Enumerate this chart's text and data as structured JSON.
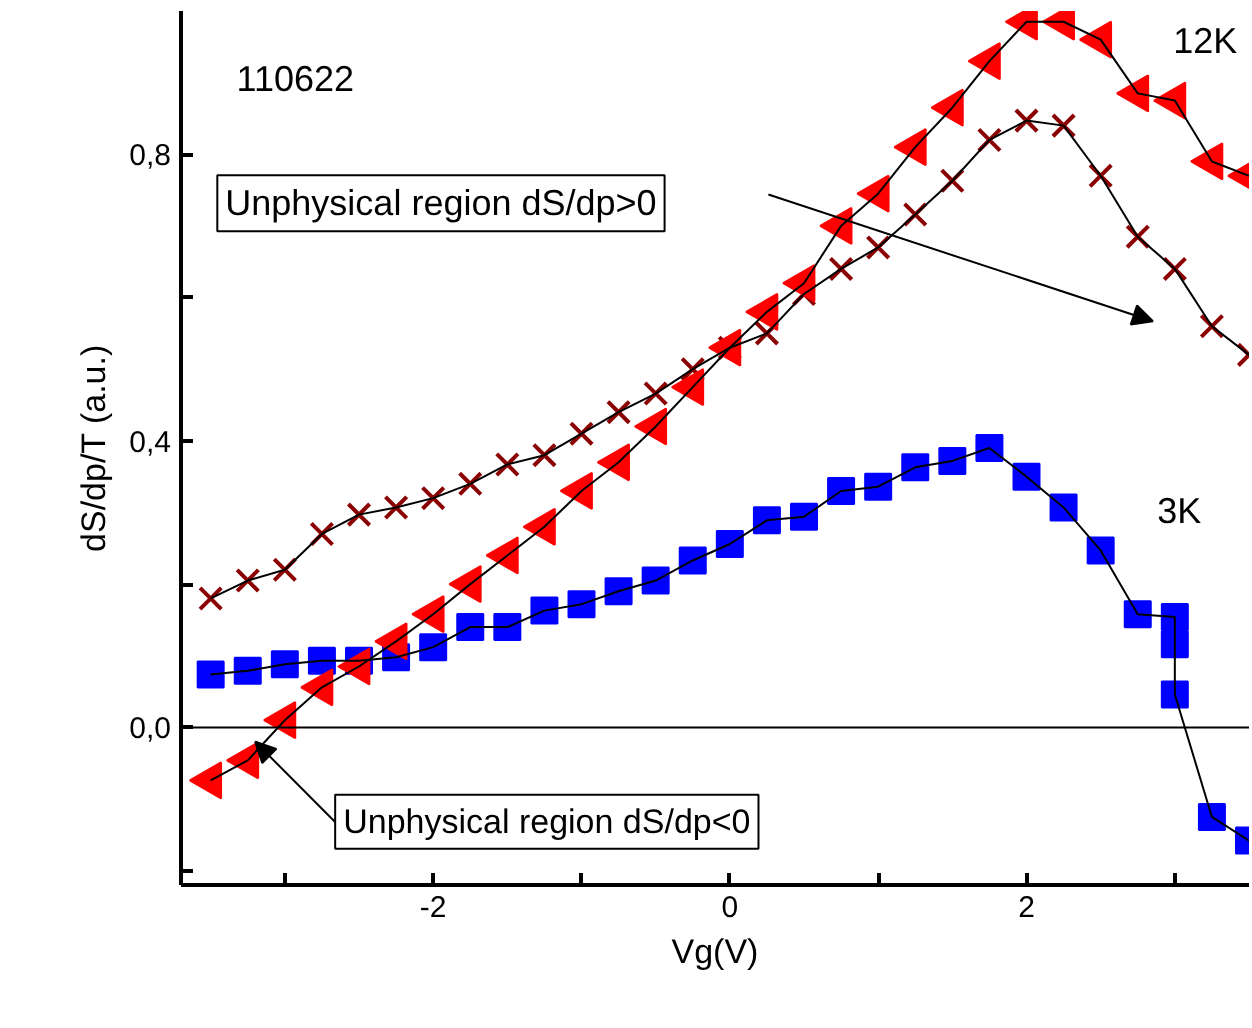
{
  "chart_data": {
    "type": "line",
    "xlabel": "Vg(V)",
    "ylabel": "dS/dp/T (a.u.)",
    "x": [
      -3.5,
      -3.25,
      -3.0,
      -2.75,
      -2.5,
      -2.25,
      -2.0,
      -1.75,
      -1.5,
      -1.25,
      -1.0,
      -0.75,
      -0.5,
      -0.25,
      0.0,
      0.25,
      0.5,
      0.75,
      1.0,
      1.25,
      1.5,
      1.75,
      2.0,
      2.25,
      2.5,
      2.75,
      3.0,
      3.25,
      3.5
    ],
    "series": [
      {
        "color": "#ff0000",
        "marker": "triangle",
        "values": [
          -0.074,
          -0.046,
          0.01,
          0.056,
          0.085,
          0.12,
          0.158,
          0.2,
          0.24,
          0.28,
          0.33,
          0.37,
          0.42,
          0.475,
          0.53,
          0.58,
          0.62,
          0.7,
          0.745,
          0.81,
          0.865,
          0.93,
          0.985,
          0.985,
          0.96,
          0.885,
          0.875,
          0.79,
          0.77
        ]
      },
      {
        "color": "#8b0000",
        "marker": "cross",
        "values": [
          0.18,
          0.205,
          0.22,
          0.27,
          0.297,
          0.307,
          0.32,
          0.34,
          0.367,
          0.38,
          0.41,
          0.44,
          0.466,
          0.5,
          0.53,
          0.55,
          0.605,
          0.64,
          0.67,
          0.716,
          0.763,
          0.82,
          0.847,
          0.84,
          0.77,
          0.685,
          0.64,
          0.56,
          0.52
        ]
      },
      {
        "color": "#0000ff",
        "marker": "square",
        "x": [
          -3.5,
          -3.25,
          -3.0,
          -2.75,
          -2.5,
          -2.25,
          -2.0,
          -1.75,
          -1.5,
          -1.25,
          -1.0,
          -0.75,
          -0.5,
          -0.25,
          0.0,
          0.25,
          0.5,
          0.75,
          1.0,
          1.25,
          1.5,
          1.75,
          2.0,
          2.25,
          2.5,
          2.75,
          3.0,
          3.0,
          3.0,
          3.25,
          3.5
        ],
        "values": [
          0.074,
          0.079,
          0.088,
          0.093,
          0.093,
          0.098,
          0.112,
          0.14,
          0.14,
          0.163,
          0.172,
          0.19,
          0.205,
          0.233,
          0.256,
          0.289,
          0.294,
          0.33,
          0.336,
          0.363,
          0.372,
          0.39,
          0.35,
          0.307,
          0.247,
          0.158,
          0.154,
          0.116,
          0.046,
          -0.125,
          -0.158
        ]
      }
    ],
    "xlim": [
      -3.7,
      3.5
    ],
    "ylim": [
      -0.22,
      1.0
    ],
    "xticks": [
      {
        "value": -3,
        "label": null
      },
      -2,
      {
        "value": -1,
        "label": null
      },
      0,
      {
        "value": 1,
        "label": null
      },
      2,
      {
        "value": 3,
        "label": null
      }
    ],
    "yticks": [
      {
        "value": -0.2,
        "label": null
      },
      {
        "value": 0,
        "label": "0,0"
      },
      {
        "value": 0.2,
        "label": null
      },
      {
        "value": 0.4,
        "label": "0,4"
      },
      {
        "value": 0.6,
        "label": null
      },
      {
        "value": 0.8,
        "label": "0,8"
      }
    ],
    "ref_lines": [
      {
        "axis": "y",
        "value": 0,
        "color": "#000000"
      }
    ],
    "grid": false,
    "annotations": [
      "110622",
      "12K",
      "3K",
      "Unphysical region dS/dp>0",
      {
        "text": "Unphysical region dS/dp<0",
        "x": -3.2,
        "y": -0.02
      }
    ]
  }
}
